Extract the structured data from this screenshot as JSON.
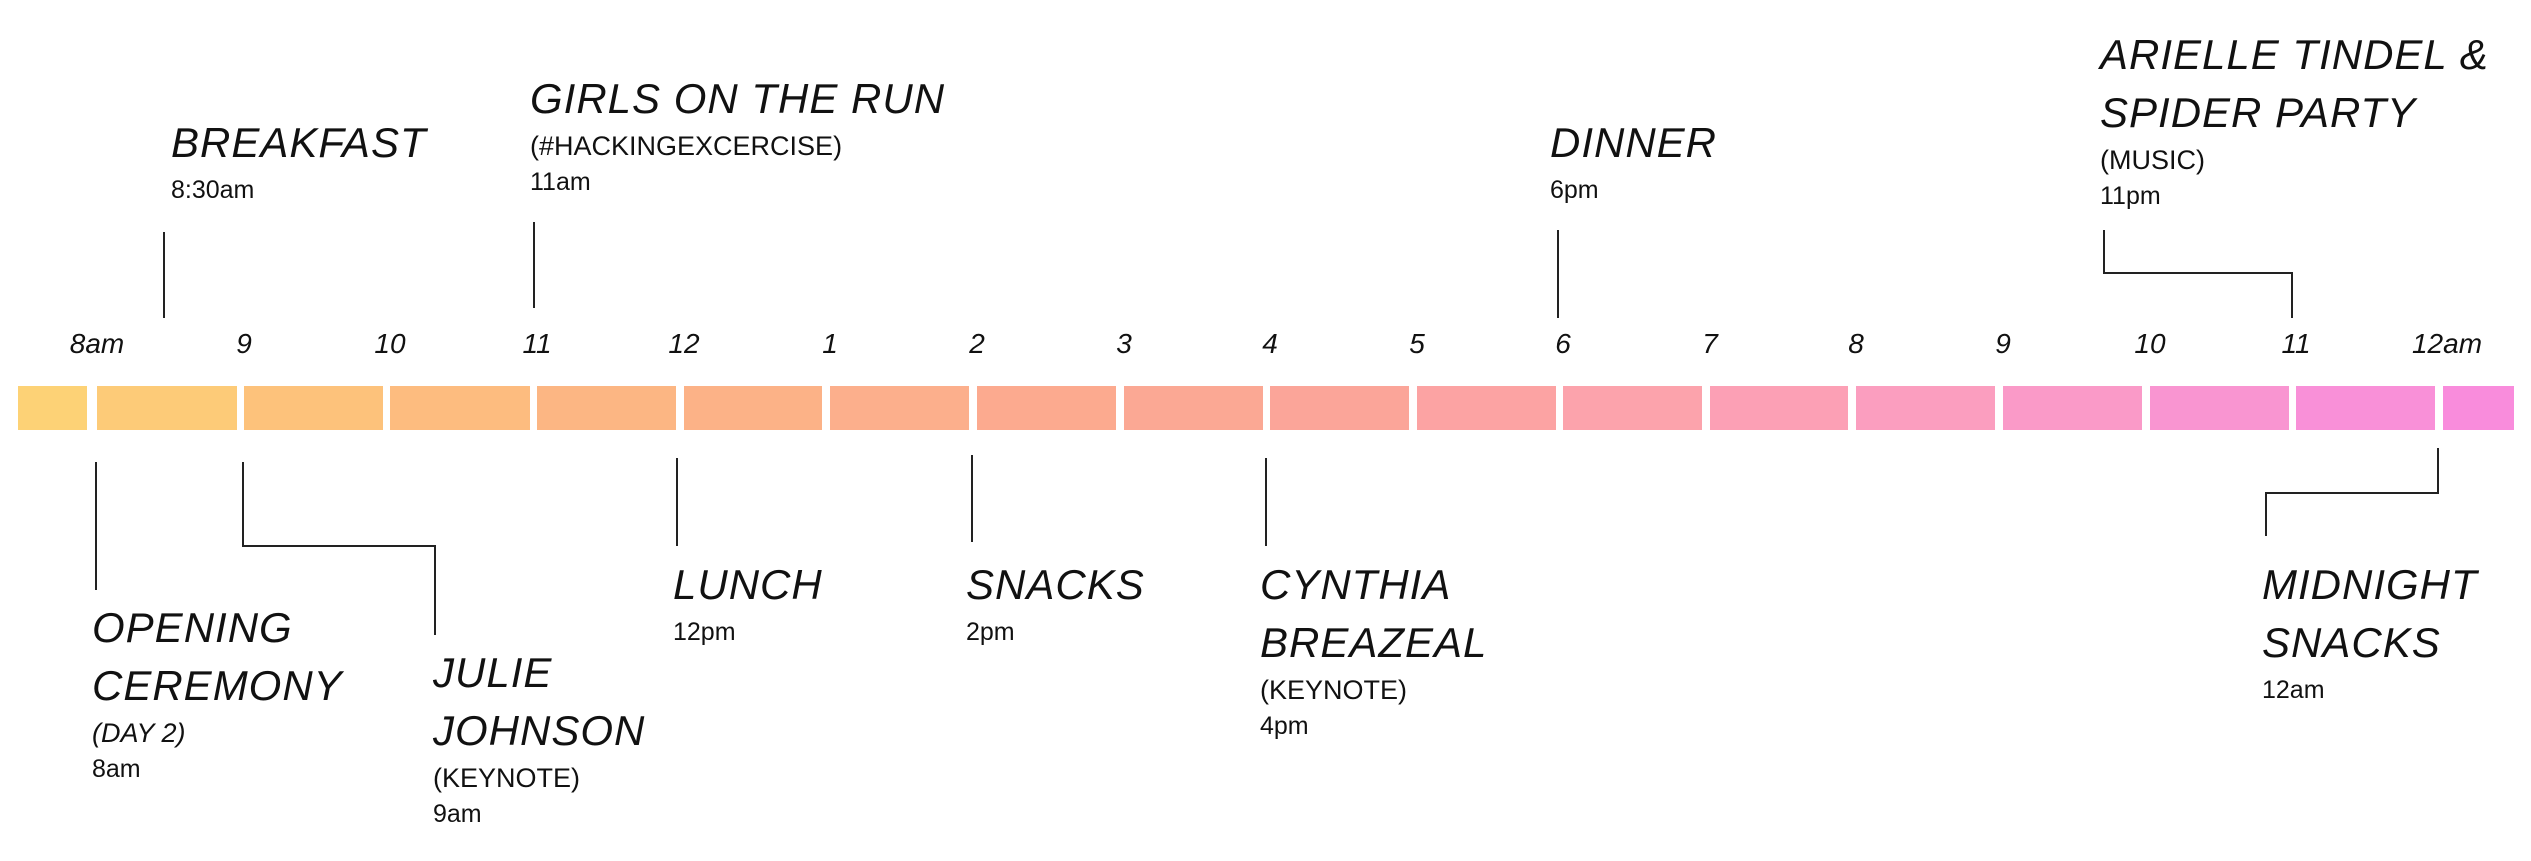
{
  "hour_labels": [
    "8am",
    "9",
    "10",
    "11",
    "12",
    "1",
    "2",
    "3",
    "4",
    "5",
    "6",
    "7",
    "8",
    "9",
    "10",
    "11",
    "12am"
  ],
  "bar_colors": [
    "#fdd276",
    "#fdcb78",
    "#fdc27b",
    "#fdbc7f",
    "#fcb683",
    "#fcb287",
    "#fcaf8c",
    "#fcaa8f",
    "#fba894",
    "#fba599",
    "#fca3a3",
    "#fca3ac",
    "#fca0b5",
    "#fb9ebf",
    "#fa9ac8",
    "#f995d1",
    "#f990d8",
    "#f98cdc"
  ],
  "events_top": [
    {
      "title": [
        "BREAKFAST"
      ],
      "time": "8:30am"
    },
    {
      "title": [
        "GIRLS ON THE RUN"
      ],
      "subtitle": "(#HACKINGEXCERCISE)",
      "time": "11am"
    },
    {
      "title": [
        "DINNER"
      ],
      "time": "6pm"
    },
    {
      "title": [
        "ARIELLE TINDEL &",
        "SPIDER PARTY"
      ],
      "subtitle": "(MUSIC)",
      "time": "11pm"
    }
  ],
  "events_bottom": [
    {
      "title": [
        "OPENING",
        "CEREMONY"
      ],
      "subtitle": "(DAY 2)",
      "time": "8am"
    },
    {
      "title": [
        "JULIE",
        "JOHNSON"
      ],
      "subtitle": "(KEYNOTE)",
      "time": "9am"
    },
    {
      "title": [
        "LUNCH"
      ],
      "time": "12pm"
    },
    {
      "title": [
        "SNACKS"
      ],
      "time": "2pm"
    },
    {
      "title": [
        "CYNTHIA",
        "BREAZEAL"
      ],
      "subtitle": "(KEYNOTE)",
      "time": "4pm"
    },
    {
      "title": [
        "MIDNIGHT",
        "SNACKS"
      ],
      "time": "12am"
    }
  ]
}
